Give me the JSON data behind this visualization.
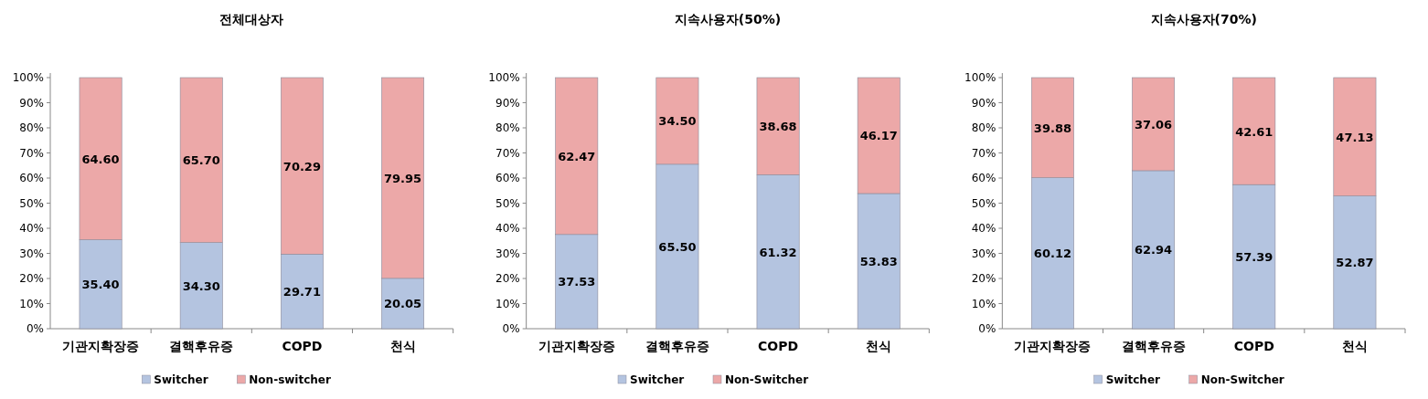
{
  "chart_data": [
    {
      "type": "bar",
      "stacked": true,
      "title": "전체대상자",
      "categories": [
        "기관지확장증",
        "결핵후유증",
        "COPD",
        "천식"
      ],
      "ylim": [
        0,
        100
      ],
      "yticks": [
        {
          "value": 0,
          "label": "0%"
        },
        {
          "value": 10,
          "label": "10%"
        },
        {
          "value": 20,
          "label": "20%"
        },
        {
          "value": 30,
          "label": "30%"
        },
        {
          "value": 40,
          "label": "40%"
        },
        {
          "value": 50,
          "label": "50%"
        },
        {
          "value": 60,
          "label": "60%"
        },
        {
          "value": 70,
          "label": "70%"
        },
        {
          "value": 80,
          "label": "80%"
        },
        {
          "value": 90,
          "label": "90%"
        },
        {
          "value": 100,
          "label": "100%"
        }
      ],
      "legend": "bottom",
      "series": [
        {
          "name": "Switcher",
          "color": "#b4c4e0",
          "values": [
            35.4,
            34.3,
            29.71,
            20.05
          ],
          "value_labels": [
            "35.40",
            "34.30",
            "29.71",
            "20.05"
          ]
        },
        {
          "name": "Non-switcher",
          "color": "#eca8a8",
          "values": [
            64.6,
            65.7,
            70.29,
            79.95
          ],
          "value_labels": [
            "64.60",
            "65.70",
            "70.29",
            "79.95"
          ]
        }
      ]
    },
    {
      "type": "bar",
      "stacked": true,
      "title": "지속사용자(50%)",
      "categories": [
        "기관지확장증",
        "결핵후유증",
        "COPD",
        "천식"
      ],
      "ylim": [
        0,
        100
      ],
      "yticks": [
        {
          "value": 0,
          "label": "0%"
        },
        {
          "value": 10,
          "label": "10%"
        },
        {
          "value": 20,
          "label": "20%"
        },
        {
          "value": 30,
          "label": "30%"
        },
        {
          "value": 40,
          "label": "40%"
        },
        {
          "value": 50,
          "label": "50%"
        },
        {
          "value": 60,
          "label": "60%"
        },
        {
          "value": 70,
          "label": "70%"
        },
        {
          "value": 80,
          "label": "80%"
        },
        {
          "value": 90,
          "label": "90%"
        },
        {
          "value": 100,
          "label": "100%"
        }
      ],
      "legend": "bottom",
      "series": [
        {
          "name": "Switcher",
          "color": "#b4c4e0",
          "values": [
            37.53,
            65.5,
            61.32,
            53.83
          ],
          "value_labels": [
            "37.53",
            "65.50",
            "61.32",
            "53.83"
          ]
        },
        {
          "name": "Non-Switcher",
          "color": "#eca8a8",
          "values": [
            62.47,
            34.5,
            38.68,
            46.17
          ],
          "value_labels": [
            "62.47",
            "34.50",
            "38.68",
            "46.17"
          ]
        }
      ]
    },
    {
      "type": "bar",
      "stacked": true,
      "title": "지속사용자(70%)",
      "categories": [
        "기관지확장증",
        "결핵후유증",
        "COPD",
        "천식"
      ],
      "ylim": [
        0,
        100
      ],
      "yticks": [
        {
          "value": 0,
          "label": "0%"
        },
        {
          "value": 10,
          "label": "10%"
        },
        {
          "value": 20,
          "label": "20%"
        },
        {
          "value": 30,
          "label": "30%"
        },
        {
          "value": 40,
          "label": "40%"
        },
        {
          "value": 50,
          "label": "50%"
        },
        {
          "value": 60,
          "label": "60%"
        },
        {
          "value": 70,
          "label": "70%"
        },
        {
          "value": 80,
          "label": "80%"
        },
        {
          "value": 90,
          "label": "90%"
        },
        {
          "value": 100,
          "label": "100%"
        }
      ],
      "legend": "bottom",
      "series": [
        {
          "name": "Switcher",
          "color": "#b4c4e0",
          "values": [
            60.12,
            62.94,
            57.39,
            52.87
          ],
          "value_labels": [
            "60.12",
            "62.94",
            "57.39",
            "52.87"
          ]
        },
        {
          "name": "Non-Switcher",
          "color": "#eca8a8",
          "values": [
            39.88,
            37.06,
            42.61,
            47.13
          ],
          "value_labels": [
            "39.88",
            "37.06",
            "42.61",
            "47.13"
          ]
        }
      ]
    }
  ]
}
